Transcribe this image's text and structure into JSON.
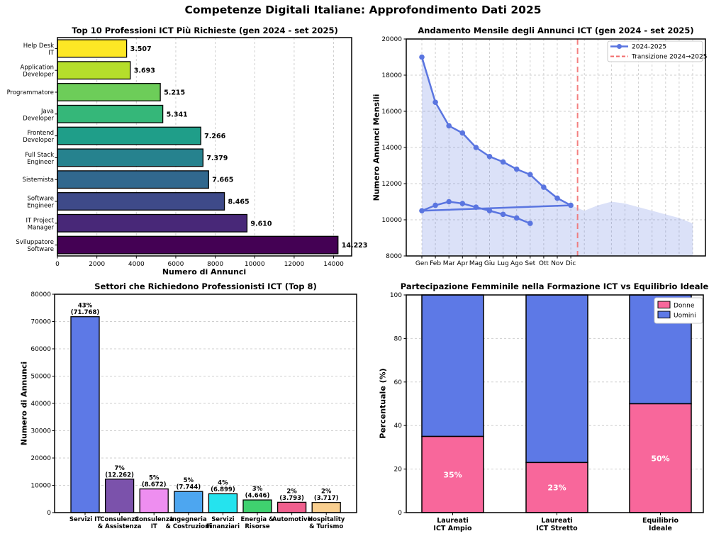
{
  "page": {
    "title": "Competenze Digitali Italiane: Approfondimento Dati 2025"
  },
  "chart_data": [
    {
      "id": "top-professions",
      "type": "bar",
      "orientation": "horizontal",
      "title": "Top 10 Professioni ICT Più Richieste (gen 2024 - set 2025)",
      "xlabel": "Numero di Annunci",
      "categories": [
        [
          "Help Desk",
          "IT"
        ],
        [
          "Application",
          "Developer"
        ],
        [
          "Programmatore"
        ],
        [
          "Java",
          "Developer"
        ],
        [
          "Frontend",
          "Developer"
        ],
        [
          "Full Stack",
          "Engineer"
        ],
        [
          "Sistemista"
        ],
        [
          "Software",
          "Engineer"
        ],
        [
          "IT Project",
          "Manager"
        ],
        [
          "Sviluppatore",
          "Software"
        ]
      ],
      "values": [
        3507,
        3693,
        5215,
        5341,
        7266,
        7379,
        7665,
        8465,
        9610,
        14223
      ],
      "value_labels": [
        "3.507",
        "3.693",
        "5.215",
        "5.341",
        "7.266",
        "7.379",
        "7.665",
        "8.465",
        "9.610",
        "14.223"
      ],
      "bar_colors": [
        "#fde725",
        "#b5de2b",
        "#6dcd59",
        "#35b779",
        "#1f9e89",
        "#26828e",
        "#31688e",
        "#3e4a89",
        "#482878",
        "#440154"
      ],
      "xlim": [
        0,
        14915
      ],
      "xticks": [
        0,
        2000,
        4000,
        6000,
        8000,
        10000,
        12000,
        14000
      ],
      "grid": "x-dashed"
    },
    {
      "id": "monthly-trend",
      "type": "line",
      "title": "Andamento Mensile degli Annunci ICT (gen 2024 - set 2025)",
      "ylabel": "Numero Annunci Mensili",
      "x_tick_labels": [
        "Gen",
        "Feb",
        "Mar",
        "Apr",
        "Mag",
        "Giu",
        "Lug",
        "Ago",
        "Set",
        "Ott",
        "Nov",
        "Dic"
      ],
      "series": [
        {
          "name": "2024",
          "values": [
            19000,
            16500,
            15200,
            14800,
            14000,
            13500,
            13200,
            12800,
            12500,
            11800,
            11200,
            10800
          ]
        },
        {
          "name": "2025",
          "values": [
            10500,
            10800,
            11000,
            10900,
            10700,
            10500,
            10300,
            10100,
            9800
          ]
        }
      ],
      "ylim": [
        8000,
        20000
      ],
      "yticks": [
        8000,
        10000,
        12000,
        14000,
        16000,
        18000,
        20000
      ],
      "legend": [
        {
          "label": "2024-2025",
          "style": "line-marker"
        },
        {
          "label": "Transizione 2024→2025",
          "style": "dashed"
        }
      ],
      "line_color": "#5a75e0",
      "fill_color": "#5a75e0",
      "transition_color": "#f26b6b",
      "transition_x_months": 11.5,
      "grid": "both-dashed",
      "legend_position": "top-right"
    },
    {
      "id": "sectors",
      "type": "bar",
      "orientation": "vertical",
      "title": "Settori che Richiedono Professionisti ICT (Top 8)",
      "ylabel": "Numero di Annunci",
      "categories": [
        [
          "Servizi IT"
        ],
        [
          "Consulenza",
          "& Assistenza"
        ],
        [
          "Consulenza",
          "IT"
        ],
        [
          "Ingegneria",
          "& Costruzioni"
        ],
        [
          "Servizi",
          "Finanziari"
        ],
        [
          "Energia &",
          "Risorse"
        ],
        [
          "Automotive"
        ],
        [
          "Hospitality",
          "& Turismo"
        ]
      ],
      "values": [
        71768,
        12262,
        8672,
        7744,
        6899,
        4646,
        3793,
        3717
      ],
      "bar_labels": [
        [
          "43%",
          "(71.768)"
        ],
        [
          "7%",
          "(12.262)"
        ],
        [
          "5%",
          "(8.672)"
        ],
        [
          "5%",
          "(7.744)"
        ],
        [
          "4%",
          "(6.899)"
        ],
        [
          "3%",
          "(4.646)"
        ],
        [
          "2%",
          "(3.793)"
        ],
        [
          "2%",
          "(3.717)"
        ]
      ],
      "bar_colors": [
        "#5d79e6",
        "#7b52ab",
        "#ee8ef0",
        "#4da6f0",
        "#25e3ee",
        "#3fd16f",
        "#f0608e",
        "#f9cf8f"
      ],
      "ylim": [
        0,
        80000
      ],
      "yticks": [
        0,
        10000,
        20000,
        30000,
        40000,
        50000,
        60000,
        70000,
        80000
      ],
      "grid": "y-dashed"
    },
    {
      "id": "gender-balance",
      "type": "stacked-bar",
      "title": "Partecipazione Femminile nella Formazione ICT vs Equilibrio Ideale",
      "ylabel": "Percentuale (%)",
      "categories": [
        [
          "Laureati",
          "ICT Ampio"
        ],
        [
          "Laureati",
          "ICT Stretto"
        ],
        [
          "Equilibrio",
          "Ideale"
        ]
      ],
      "series": [
        {
          "name": "Donne",
          "values": [
            35,
            23,
            50
          ],
          "color": "#f8679b"
        },
        {
          "name": "Uomini",
          "values": [
            65,
            77,
            50
          ],
          "color": "#5d79e6"
        }
      ],
      "pct_labels": [
        "35%",
        "23%",
        "50%"
      ],
      "ylim": [
        0,
        100
      ],
      "yticks": [
        0,
        20,
        40,
        60,
        80,
        100
      ],
      "legend_position": "top-right",
      "grid": "y-dashed"
    }
  ]
}
